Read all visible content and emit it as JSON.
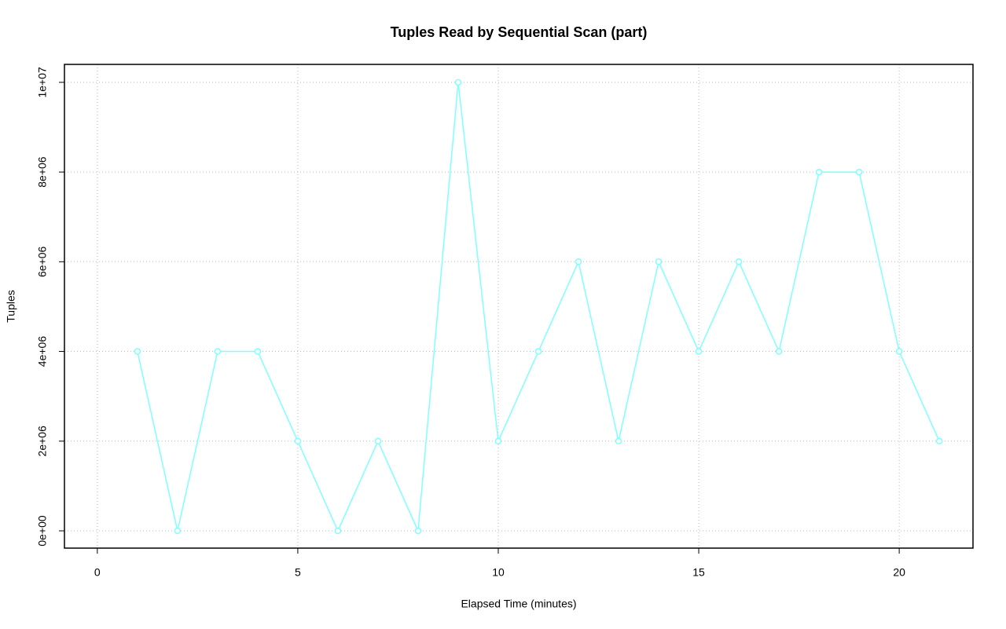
{
  "chart_data": {
    "type": "line",
    "title": "Tuples Read by Sequential Scan (part)",
    "x_label": "Elapsed Time (minutes)",
    "y_label": "Tuples",
    "x": [
      1,
      2,
      3,
      4,
      5,
      6,
      7,
      8,
      9,
      10,
      11,
      12,
      13,
      14,
      15,
      16,
      17,
      18,
      19,
      20,
      21
    ],
    "series": [
      {
        "color": "#80ffff",
        "values": [
          4000000,
          0,
          4000000,
          4000000,
          2000000,
          0,
          2000000,
          0,
          10000000,
          2000000,
          4000000,
          6000000,
          2000000,
          6000000,
          4000000,
          6000000,
          4000000,
          8000000,
          8000000,
          4000000,
          2000000
        ]
      }
    ],
    "xlim": [
      -0.82,
      21.84
    ],
    "xticks": [
      0,
      5,
      10,
      15,
      20
    ],
    "ylim": [
      -385000,
      10400000
    ],
    "yticks": [
      {
        "value": 0,
        "label": "0e+00"
      },
      {
        "value": 2000000,
        "label": "2e+06"
      },
      {
        "value": 4000000,
        "label": "4e+06"
      },
      {
        "value": 6000000,
        "label": "6e+06"
      },
      {
        "value": 8000000,
        "label": "8e+06"
      },
      {
        "value": 10000000,
        "label": "1e+07"
      }
    ],
    "grid": true
  }
}
